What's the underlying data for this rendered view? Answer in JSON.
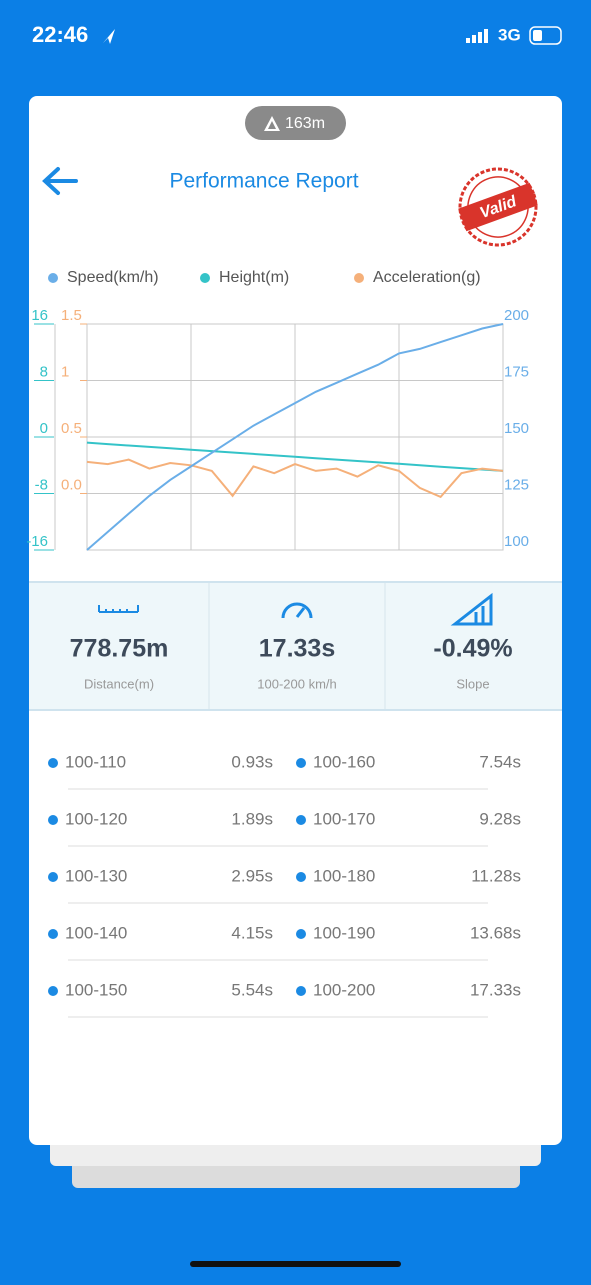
{
  "status_bar": {
    "time": "22:46",
    "network": "3G"
  },
  "header": {
    "badge": "163m",
    "title": "Performance Report",
    "stamp": "Valid"
  },
  "chart_data": {
    "type": "line",
    "categories": [
      null,
      null,
      null,
      null,
      null,
      null,
      null,
      null,
      null,
      null,
      null,
      null,
      null,
      null,
      null,
      null,
      null,
      null,
      null,
      null,
      null
    ],
    "series": [
      {
        "name": "Speed(km/h)",
        "color": "#6aaee8",
        "axis": "y2",
        "values": [
          100,
          108,
          116,
          124,
          131,
          137,
          143,
          149,
          155,
          160,
          165,
          170,
          174,
          178,
          182,
          187,
          189,
          192,
          195,
          198,
          200
        ]
      },
      {
        "name": "Height(m)",
        "color": "#34c3c8",
        "axis": "y",
        "values": [
          -0.8,
          -1.0,
          -1.2,
          -1.4,
          -1.6,
          -1.8,
          -2.0,
          -2.2,
          -2.4,
          -2.6,
          -2.8,
          -3.0,
          -3.2,
          -3.4,
          -3.6,
          -3.8,
          -4.0,
          -4.2,
          -4.4,
          -4.6,
          -4.8
        ]
      },
      {
        "name": "Acceleration(g)",
        "color": "#f5b07a",
        "axis": "y3",
        "values": [
          0.28,
          0.26,
          0.3,
          0.22,
          0.27,
          0.25,
          0.2,
          -0.02,
          0.24,
          0.18,
          0.26,
          0.2,
          0.22,
          0.15,
          0.25,
          0.2,
          0.05,
          -0.03,
          0.18,
          0.22,
          0.2
        ]
      }
    ],
    "ylim": [
      -16,
      16
    ],
    "yticks": [
      16,
      8,
      0,
      -8,
      -16
    ],
    "y2lim": [
      100,
      200
    ],
    "y2ticks": [
      200,
      175,
      150,
      125,
      100
    ],
    "y3lim": [
      -0.5,
      1.5
    ],
    "y3ticks": [
      1.5,
      1,
      0.5,
      {
        "value": 0,
        "label": "0.0"
      }
    ],
    "grid": true
  },
  "stats": [
    {
      "value": "778.75m",
      "label": "Distance(m)"
    },
    {
      "value": "17.33s",
      "label": "100-200 km/h"
    },
    {
      "value": "-0.49%",
      "label": "Slope"
    }
  ],
  "splits": [
    {
      "range": "100-110",
      "time": "0.93s"
    },
    {
      "range": "100-120",
      "time": "1.89s"
    },
    {
      "range": "100-130",
      "time": "2.95s"
    },
    {
      "range": "100-140",
      "time": "4.15s"
    },
    {
      "range": "100-150",
      "time": "5.54s"
    },
    {
      "range": "100-160",
      "time": "7.54s"
    },
    {
      "range": "100-170",
      "time": "9.28s"
    },
    {
      "range": "100-180",
      "time": "11.28s"
    },
    {
      "range": "100-190",
      "time": "13.68s"
    },
    {
      "range": "100-200",
      "time": "17.33s"
    }
  ]
}
